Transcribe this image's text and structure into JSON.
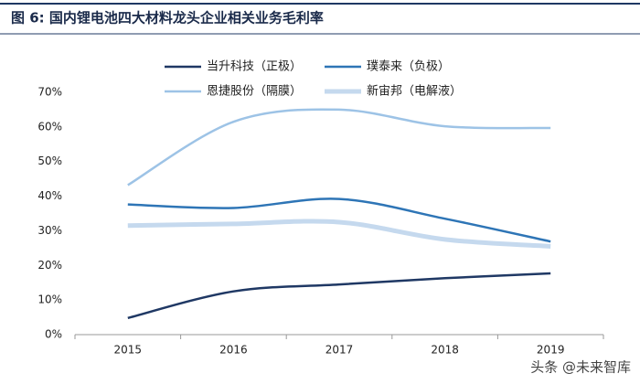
{
  "chart_data": {
    "type": "line",
    "title": "图 6:  国内锂电池四大材料龙头企业相关业务毛利率",
    "categories": [
      "2015",
      "2016",
      "2017",
      "2018",
      "2019"
    ],
    "series": [
      {
        "name": "当升科技（正极）",
        "color": "#1f3864",
        "width": 2.5,
        "values": [
          4.8,
          12.5,
          14.5,
          16.3,
          17.7
        ]
      },
      {
        "name": "璞泰来（负极）",
        "color": "#2e75b6",
        "width": 2.5,
        "values": [
          37.6,
          36.6,
          39.2,
          33.5,
          26.9
        ]
      },
      {
        "name": "恩捷股份（隔膜）",
        "color": "#9dc3e6",
        "width": 2.5,
        "values": [
          43.2,
          61.5,
          65.0,
          60.2,
          59.7
        ]
      },
      {
        "name": "新宙邦（电解液）",
        "color": "#c5d9ee",
        "width": 5,
        "values": [
          31.5,
          32.0,
          32.5,
          27.5,
          25.5
        ]
      }
    ],
    "ylim": [
      0,
      70
    ],
    "yticks": [
      {
        "value": 0,
        "label": "0%"
      },
      {
        "value": 10,
        "label": "10%"
      },
      {
        "value": 20,
        "label": "20%"
      },
      {
        "value": 30,
        "label": "30%"
      },
      {
        "value": 40,
        "label": "40%"
      },
      {
        "value": 50,
        "label": "50%"
      },
      {
        "value": 60,
        "label": "60%"
      },
      {
        "value": 70,
        "label": "70%"
      }
    ],
    "grid": false,
    "watermark": "头条 @未来智库"
  }
}
